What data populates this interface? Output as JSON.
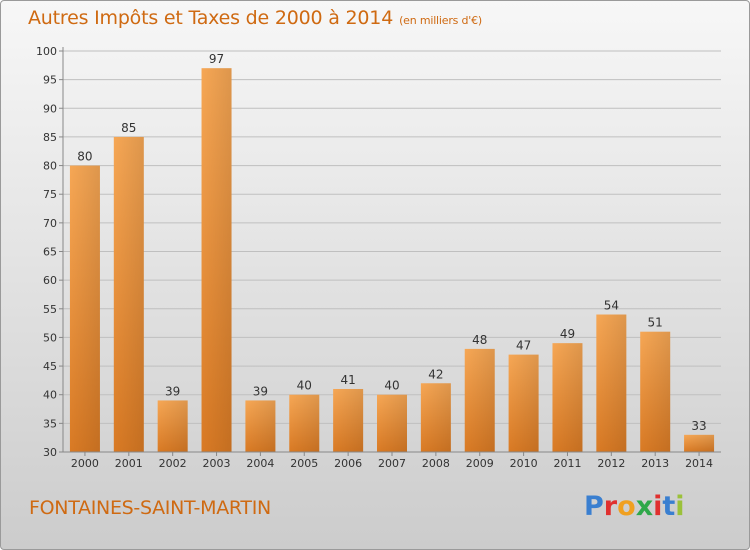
{
  "title": "Autres Impôts et Taxes de 2000 à 2014",
  "subtitle": "(en milliers d'€)",
  "commune": "FONTAINES-SAINT-MARTIN",
  "logo": {
    "text": "Proxiti",
    "colors": [
      "#3a7fd0",
      "#e0302f",
      "#f0a020",
      "#2fa84a",
      "#e0302f",
      "#3a7fd0",
      "#9bc13a"
    ]
  },
  "colors": {
    "title": "#cf6a12",
    "bar_light": "#f6a755",
    "bar_dark": "#d97a24",
    "grid": "#bfbfbf",
    "axis": "#888888"
  },
  "chart_data": {
    "type": "bar",
    "categories": [
      "2000",
      "2001",
      "2002",
      "2003",
      "2004",
      "2005",
      "2006",
      "2007",
      "2008",
      "2009",
      "2010",
      "2011",
      "2012",
      "2013",
      "2014"
    ],
    "values": [
      80,
      85,
      39,
      97,
      39,
      40,
      41,
      40,
      42,
      48,
      47,
      49,
      54,
      51,
      33
    ],
    "ylim": [
      30,
      100
    ],
    "yticks": [
      30,
      35,
      40,
      45,
      50,
      55,
      60,
      65,
      70,
      75,
      80,
      85,
      90,
      95,
      100
    ],
    "grid": true
  }
}
